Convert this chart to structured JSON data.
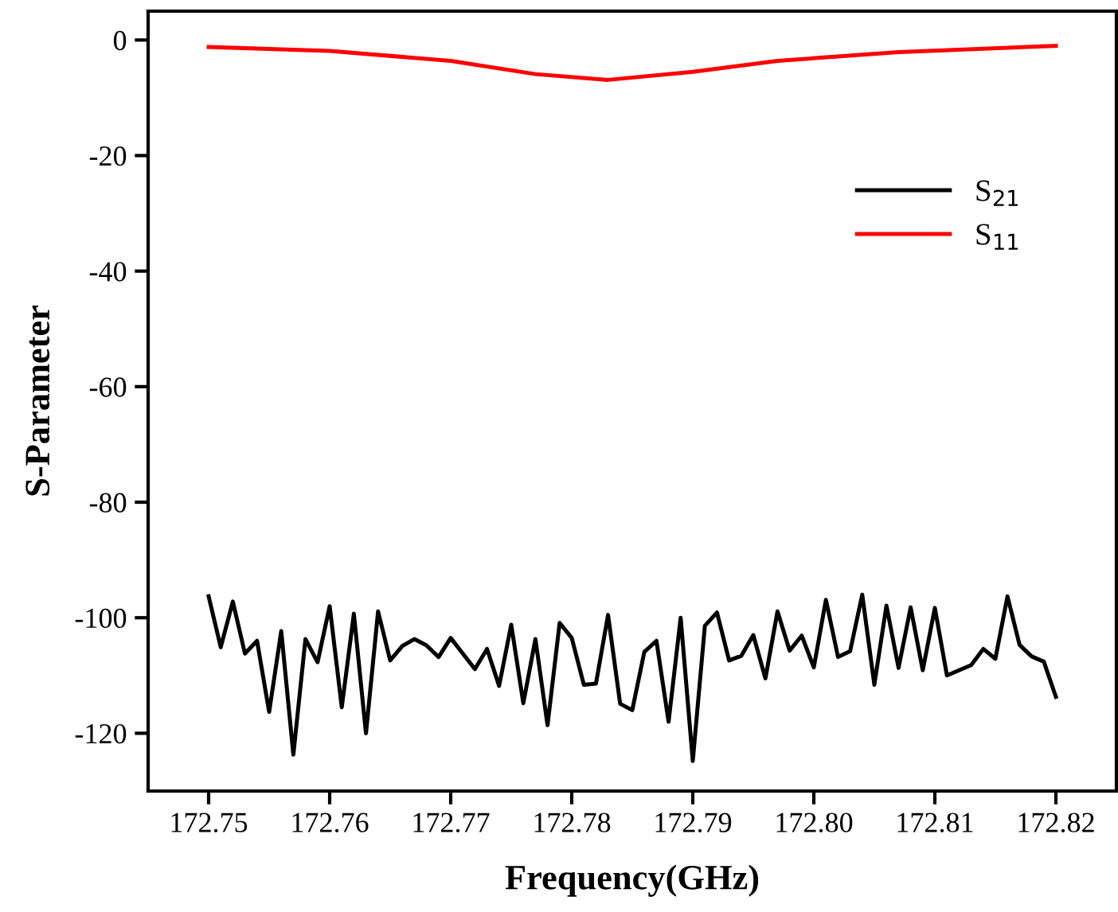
{
  "chart_data": {
    "type": "line",
    "xlabel": "Frequency(GHz)",
    "ylabel": "S-Parameter",
    "xlim": [
      172.745,
      172.825
    ],
    "ylim": [
      -130,
      5
    ],
    "xticks": [
      172.75,
      172.76,
      172.77,
      172.78,
      172.79,
      {
        "value": 172.8,
        "label": "172.80"
      },
      172.81,
      172.82
    ],
    "yticks": [
      -120,
      -100,
      -80,
      -60,
      -40,
      -20,
      0
    ],
    "grid": false,
    "legend": "top right",
    "marker": "none",
    "line_style": "solid",
    "series": [
      {
        "name": "S$_{21}$",
        "color": "#000000",
        "x": [
          172.75,
          172.751,
          172.752,
          172.753,
          172.754,
          172.755,
          172.756,
          172.757,
          172.758,
          172.759,
          172.76,
          172.761,
          172.762,
          172.763,
          172.764,
          172.765,
          172.766,
          172.767,
          172.768,
          172.769,
          172.77,
          172.771,
          172.772,
          172.773,
          172.774,
          172.775,
          172.776,
          172.777,
          172.778,
          172.779,
          172.78,
          172.781,
          172.782,
          172.783,
          172.784,
          172.785,
          172.786,
          172.787,
          172.788,
          172.789,
          172.79,
          172.791,
          172.792,
          172.793,
          172.794,
          172.795,
          172.796,
          172.797,
          172.798,
          172.799,
          172.8,
          172.801,
          172.802,
          172.803,
          172.804,
          172.805,
          172.806,
          172.807,
          172.808,
          172.809,
          172.81,
          172.811,
          172.812,
          172.813,
          172.814,
          172.815,
          172.816,
          172.817,
          172.818,
          172.819,
          172.82
        ],
        "values": [
          -96.3,
          -105.1,
          -97.2,
          -106.2,
          -104.0,
          -116.3,
          -102.3,
          -123.7,
          -103.7,
          -107.7,
          -98.0,
          -115.5,
          -99.3,
          -120.0,
          -98.9,
          -107.4,
          -104.9,
          -103.7,
          -104.8,
          -106.8,
          -103.5,
          -106.2,
          -108.9,
          -105.4,
          -111.8,
          -101.2,
          -114.8,
          -103.7,
          -118.6,
          -100.9,
          -103.5,
          -111.6,
          -111.4,
          -99.5,
          -114.9,
          -116.0,
          -105.9,
          -104.0,
          -118.0,
          -100.0,
          -124.8,
          -101.4,
          -99.1,
          -107.4,
          -106.6,
          -103.0,
          -110.5,
          -98.9,
          -105.7,
          -103.1,
          -108.6,
          -96.9,
          -106.8,
          -105.8,
          -96.0,
          -111.6,
          -97.9,
          -108.7,
          -98.2,
          -109.1,
          -98.3,
          -110.0,
          -109.1,
          -108.2,
          -105.4,
          -107.1,
          -96.3,
          -104.7,
          -106.7,
          -107.6,
          -113.7
        ]
      },
      {
        "name": "S$_{11}$",
        "color": "#ff0000",
        "x": [
          172.75,
          172.76,
          172.77,
          172.777,
          172.783,
          172.79,
          172.797,
          172.807,
          172.82
        ],
        "values": [
          -1.2,
          -1.9,
          -3.6,
          -5.9,
          -6.9,
          -5.5,
          -3.6,
          -2.1,
          -1.0
        ]
      }
    ]
  }
}
